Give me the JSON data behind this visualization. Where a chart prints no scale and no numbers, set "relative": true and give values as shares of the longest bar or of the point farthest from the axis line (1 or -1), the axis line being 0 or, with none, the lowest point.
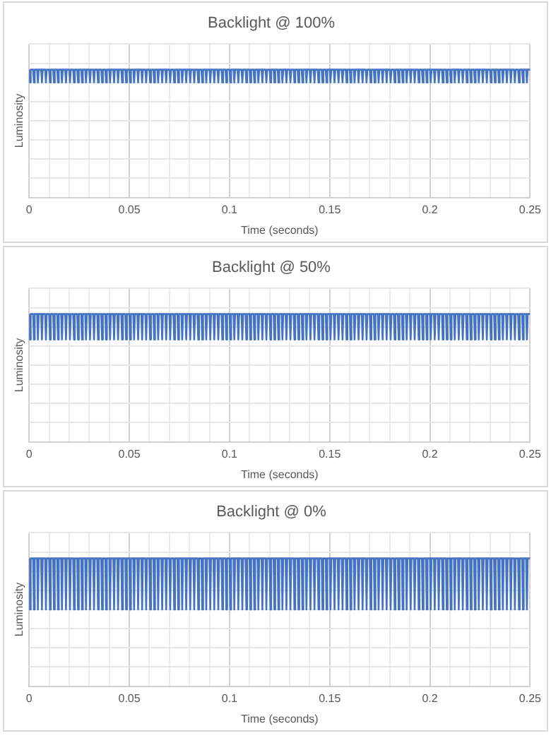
{
  "chart_data": [
    {
      "type": "line",
      "title": "Backlight @ 100%",
      "xlabel": "Time (seconds)",
      "ylabel": "Luminosity",
      "relative": true,
      "color": "#4472c4",
      "grid": true,
      "tick_labels": "x",
      "xlim": [
        0,
        0.25
      ],
      "xticks": [
        0,
        {
          "value": 0.01,
          "label": null
        },
        {
          "value": 0.02,
          "label": null
        },
        {
          "value": 0.03,
          "label": null
        },
        {
          "value": 0.04,
          "label": null
        },
        0.05,
        {
          "value": 0.06,
          "label": null
        },
        {
          "value": 0.07,
          "label": null
        },
        {
          "value": 0.08,
          "label": null
        },
        {
          "value": 0.09,
          "label": null
        },
        0.1,
        {
          "value": 0.11,
          "label": null
        },
        {
          "value": 0.12,
          "label": null
        },
        {
          "value": 0.13,
          "label": null
        },
        {
          "value": 0.14,
          "label": null
        },
        0.15,
        {
          "value": 0.16,
          "label": null
        },
        {
          "value": 0.17,
          "label": null
        },
        {
          "value": 0.18,
          "label": null
        },
        {
          "value": 0.19,
          "label": null
        },
        0.2,
        {
          "value": 0.21,
          "label": null
        },
        {
          "value": 0.22,
          "label": null
        },
        {
          "value": 0.23,
          "label": null
        },
        {
          "value": 0.24,
          "label": null
        },
        0.25
      ],
      "x": [
        0,
        0.0004,
        0.0008,
        0.002,
        0.0024,
        0.0028,
        0.004,
        0.0044,
        0.0048,
        0.006,
        0.0064,
        0.0068,
        0.008,
        0.0084,
        0.0088,
        0.01,
        0.0104,
        0.0108,
        0.012,
        0.0124,
        0.0128,
        0.014,
        0.0144,
        0.0148,
        0.016,
        0.0164,
        0.0168,
        0.018,
        0.0184,
        0.0188,
        0.02,
        0.0204,
        0.0208,
        0.022,
        0.0224,
        0.0228,
        0.024,
        0.0244,
        0.0248,
        0.026,
        0.0264,
        0.0268,
        0.028,
        0.0284,
        0.0288,
        0.03,
        0.0304,
        0.0308,
        0.032,
        0.0324,
        0.0328,
        0.034,
        0.0344,
        0.0348,
        0.036,
        0.0364,
        0.0368,
        0.038,
        0.0384,
        0.0388,
        0.04,
        0.0404,
        0.0408,
        0.042,
        0.0424,
        0.0428,
        0.044,
        0.0444,
        0.0448,
        0.046,
        0.0464,
        0.0468,
        0.048,
        0.0484,
        0.0488,
        0.05,
        0.0504,
        0.0508,
        0.052,
        0.0524,
        0.0528,
        0.054,
        0.0544,
        0.0548,
        0.056,
        0.0564,
        0.0568,
        0.058,
        0.0584,
        0.0588,
        0.06,
        0.0604,
        0.0608,
        0.062,
        0.0624,
        0.0628,
        0.064,
        0.0644,
        0.0648,
        0.066,
        0.0664,
        0.0668,
        0.068,
        0.0684,
        0.0688,
        0.07,
        0.0704,
        0.0708,
        0.072,
        0.0724,
        0.0728,
        0.074,
        0.0744,
        0.0748,
        0.076,
        0.0764,
        0.0768,
        0.078,
        0.0784,
        0.0788,
        0.08,
        0.0804,
        0.0808,
        0.082,
        0.0824,
        0.0828,
        0.084,
        0.0844,
        0.0848,
        0.086,
        0.0864,
        0.0868,
        0.088,
        0.0884,
        0.0888,
        0.09,
        0.0904,
        0.0908,
        0.092,
        0.0924,
        0.0928,
        0.094,
        0.0944,
        0.0948,
        0.096,
        0.0964,
        0.0968,
        0.098,
        0.0984,
        0.0988,
        0.1,
        0.1004,
        0.1008,
        0.102,
        0.1024,
        0.1028,
        0.104,
        0.1044,
        0.1048,
        0.106,
        0.1064,
        0.1068,
        0.108,
        0.1084,
        0.1088,
        0.11,
        0.1104,
        0.1108,
        0.112,
        0.1124,
        0.1128,
        0.114,
        0.1144,
        0.1148,
        0.116,
        0.1164,
        0.1168,
        0.118,
        0.1184,
        0.1188,
        0.12,
        0.1204,
        0.1208,
        0.122,
        0.1224,
        0.1228,
        0.124,
        0.1244,
        0.1248,
        0.126,
        0.1264,
        0.1268,
        0.128,
        0.1284,
        0.1288,
        0.13,
        0.1304,
        0.1308,
        0.132,
        0.1324,
        0.1328,
        0.134,
        0.1344,
        0.1348,
        0.136,
        0.1364,
        0.1368,
        0.138,
        0.1384,
        0.1388,
        0.14,
        0.1404,
        0.1408,
        0.142,
        0.1424,
        0.1428,
        0.144,
        0.1444,
        0.1448,
        0.146,
        0.1464,
        0.1468,
        0.148,
        0.1484,
        0.1488,
        0.15,
        0.1504,
        0.1508,
        0.152,
        0.1524,
        0.1528,
        0.154,
        0.1544,
        0.1548,
        0.156,
        0.1564,
        0.1568,
        0.158,
        0.1584,
        0.1588,
        0.16,
        0.1604,
        0.1608,
        0.162,
        0.1624,
        0.1628,
        0.164,
        0.1644,
        0.1648,
        0.166,
        0.1664,
        0.1668,
        0.168,
        0.1684,
        0.1688,
        0.17,
        0.1704,
        0.1708,
        0.172,
        0.1724,
        0.1728,
        0.174,
        0.1744,
        0.1748,
        0.176,
        0.1764,
        0.1768,
        0.178,
        0.1784,
        0.1788,
        0.18,
        0.1804,
        0.1808,
        0.182,
        0.1824,
        0.1828,
        0.184,
        0.1844,
        0.1848,
        0.186,
        0.1864,
        0.1868,
        0.188,
        0.1884,
        0.1888,
        0.19,
        0.1904,
        0.1908,
        0.192,
        0.1924,
        0.1928,
        0.194,
        0.1944,
        0.1948,
        0.196,
        0.1964,
        0.1968,
        0.198,
        0.1984,
        0.1988,
        0.2,
        0.2004,
        0.2008,
        0.202,
        0.2024,
        0.2028,
        0.204,
        0.2044,
        0.2048,
        0.206,
        0.2064,
        0.2068,
        0.208,
        0.2084,
        0.2088,
        0.21,
        0.2104,
        0.2108,
        0.212,
        0.2124,
        0.2128,
        0.214,
        0.2144,
        0.2148,
        0.216,
        0.2164,
        0.2168,
        0.218,
        0.2184,
        0.2188,
        0.22,
        0.2204,
        0.2208,
        0.222,
        0.2224,
        0.2228,
        0.224,
        0.2244,
        0.2248,
        0.226,
        0.2264,
        0.2268,
        0.228,
        0.2284,
        0.2288,
        0.23,
        0.2304,
        0.2308,
        0.232,
        0.2324,
        0.2328,
        0.234,
        0.2344,
        0.2348,
        0.236,
        0.2364,
        0.2368,
        0.238,
        0.2384,
        0.2388,
        0.24,
        0.2404,
        0.2408,
        0.242,
        0.2424,
        0.2428,
        0.244,
        0.2444,
        0.2448,
        0.246,
        0.2464,
        0.2468,
        0.248,
        0.2484,
        0.2488,
        0.25
      ],
      "values": [
        1,
        0.9,
        1,
        1,
        0.9,
        1,
        1,
        0.9,
        1,
        1,
        0.9,
        1,
        1,
        0.9,
        1,
        1,
        0.9,
        1,
        1,
        0.9,
        1,
        1,
        0.9,
        1,
        1,
        0.9,
        1,
        1,
        0.9,
        1,
        1,
        0.9,
        1,
        1,
        0.9,
        1,
        1,
        0.9,
        1,
        1,
        0.9,
        1,
        1,
        0.9,
        1,
        1,
        0.9,
        1,
        1,
        0.9,
        1,
        1,
        0.9,
        1,
        1,
        0.9,
        1,
        1,
        0.9,
        1,
        1,
        0.9,
        1,
        1,
        0.9,
        1,
        1,
        0.9,
        1,
        1,
        0.9,
        1,
        1,
        0.9,
        1,
        1,
        0.9,
        1,
        1,
        0.9,
        1,
        1,
        0.9,
        1,
        1,
        0.9,
        1,
        1,
        0.9,
        1,
        1,
        0.9,
        1,
        1,
        0.9,
        1,
        1,
        0.9,
        1,
        1,
        0.9,
        1,
        1,
        0.9,
        1,
        1,
        0.9,
        1,
        1,
        0.9,
        1,
        1,
        0.9,
        1,
        1,
        0.9,
        1,
        1,
        0.9,
        1,
        1,
        0.9,
        1,
        1,
        0.9,
        1,
        1,
        0.9,
        1,
        1,
        0.9,
        1,
        1,
        0.9,
        1,
        1,
        0.9,
        1,
        1,
        0.9,
        1,
        1,
        0.9,
        1,
        1,
        0.9,
        1,
        1,
        0.9,
        1,
        1,
        0.9,
        1,
        1,
        0.9,
        1,
        1,
        0.9,
        1,
        1,
        0.9,
        1,
        1,
        0.9,
        1,
        1,
        0.9,
        1,
        1,
        0.9,
        1,
        1,
        0.9,
        1,
        1,
        0.9,
        1,
        1,
        0.9,
        1,
        1,
        0.9,
        1,
        1,
        0.9,
        1,
        1,
        0.9,
        1,
        1,
        0.9,
        1,
        1,
        0.9,
        1,
        1,
        0.9,
        1,
        1,
        0.9,
        1,
        1,
        0.9,
        1,
        1,
        0.9,
        1,
        1,
        0.9,
        1,
        1,
        0.9,
        1,
        1,
        0.9,
        1,
        1,
        0.9,
        1,
        1,
        0.9,
        1,
        1,
        0.9,
        1,
        1,
        0.9,
        1,
        1,
        0.9,
        1,
        1,
        0.9,
        1,
        1,
        0.9,
        1,
        1,
        0.9,
        1,
        1,
        0.9,
        1,
        1,
        0.9,
        1,
        1,
        0.9,
        1,
        1,
        0.9,
        1,
        1,
        0.9,
        1,
        1,
        0.9,
        1,
        1,
        0.9,
        1,
        1,
        0.9,
        1,
        1,
        0.9,
        1,
        1,
        0.9,
        1,
        1,
        0.9,
        1,
        1,
        0.9,
        1,
        1,
        0.9,
        1,
        1,
        0.9,
        1,
        1,
        0.9,
        1,
        1,
        0.9,
        1,
        1,
        0.9,
        1,
        1,
        0.9,
        1,
        1,
        0.9,
        1,
        1,
        0.9,
        1,
        1,
        0.9,
        1,
        1,
        0.9,
        1,
        1,
        0.9,
        1,
        1,
        0.9,
        1,
        1,
        0.9,
        1,
        1,
        0.9,
        1,
        1,
        0.9,
        1,
        1,
        0.9,
        1,
        1,
        0.9,
        1,
        1,
        0.9,
        1,
        1,
        0.9,
        1,
        1,
        0.9,
        1,
        1,
        0.9,
        1,
        1,
        0.9,
        1,
        1,
        0.9,
        1,
        1,
        0.9,
        1,
        1,
        0.9,
        1,
        1,
        0.9,
        1,
        1,
        0.9,
        1,
        1,
        0.9,
        1,
        1,
        0.9,
        1,
        1,
        0.9,
        1,
        1,
        0.9,
        1,
        1,
        0.9,
        1,
        1,
        0.9,
        1,
        1
      ]
    },
    {
      "type": "line",
      "title": "Backlight @ 50%",
      "xlabel": "Time (seconds)",
      "ylabel": "Luminosity",
      "relative": true,
      "color": "#4472c4",
      "grid": true,
      "tick_labels": "x",
      "xlim": [
        0,
        0.25
      ],
      "xticks": [
        0,
        {
          "value": 0.01,
          "label": null
        },
        {
          "value": 0.02,
          "label": null
        },
        {
          "value": 0.03,
          "label": null
        },
        {
          "value": 0.04,
          "label": null
        },
        0.05,
        {
          "value": 0.06,
          "label": null
        },
        {
          "value": 0.07,
          "label": null
        },
        {
          "value": 0.08,
          "label": null
        },
        {
          "value": 0.09,
          "label": null
        },
        0.1,
        {
          "value": 0.11,
          "label": null
        },
        {
          "value": 0.12,
          "label": null
        },
        {
          "value": 0.13,
          "label": null
        },
        {
          "value": 0.14,
          "label": null
        },
        0.15,
        {
          "value": 0.16,
          "label": null
        },
        {
          "value": 0.17,
          "label": null
        },
        {
          "value": 0.18,
          "label": null
        },
        {
          "value": 0.19,
          "label": null
        },
        0.2,
        {
          "value": 0.21,
          "label": null
        },
        {
          "value": 0.22,
          "label": null
        },
        {
          "value": 0.23,
          "label": null
        },
        {
          "value": 0.24,
          "label": null
        },
        0.25
      ],
      "x": [
        0,
        0.0004,
        0.0008,
        0.002,
        0.0024,
        0.0028,
        0.004,
        0.0044,
        0.0048,
        0.006,
        0.0064,
        0.0068,
        0.008,
        0.0084,
        0.0088,
        0.01,
        0.0104,
        0.0108,
        0.012,
        0.0124,
        0.0128,
        0.014,
        0.0144,
        0.0148,
        0.016,
        0.0164,
        0.0168,
        0.018,
        0.0184,
        0.0188,
        0.02,
        0.0204,
        0.0208,
        0.022,
        0.0224,
        0.0228,
        0.024,
        0.0244,
        0.0248,
        0.026,
        0.0264,
        0.0268,
        0.028,
        0.0284,
        0.0288,
        0.03,
        0.0304,
        0.0308,
        0.032,
        0.0324,
        0.0328,
        0.034,
        0.0344,
        0.0348,
        0.036,
        0.0364,
        0.0368,
        0.038,
        0.0384,
        0.0388,
        0.04,
        0.0404,
        0.0408,
        0.042,
        0.0424,
        0.0428,
        0.044,
        0.0444,
        0.0448,
        0.046,
        0.0464,
        0.0468,
        0.048,
        0.0484,
        0.0488,
        0.05,
        0.0504,
        0.0508,
        0.052,
        0.0524,
        0.0528,
        0.054,
        0.0544,
        0.0548,
        0.056,
        0.0564,
        0.0568,
        0.058,
        0.0584,
        0.0588,
        0.06,
        0.0604,
        0.0608,
        0.062,
        0.0624,
        0.0628,
        0.064,
        0.0644,
        0.0648,
        0.066,
        0.0664,
        0.0668,
        0.068,
        0.0684,
        0.0688,
        0.07,
        0.0704,
        0.0708,
        0.072,
        0.0724,
        0.0728,
        0.074,
        0.0744,
        0.0748,
        0.076,
        0.0764,
        0.0768,
        0.078,
        0.0784,
        0.0788,
        0.08,
        0.0804,
        0.0808,
        0.082,
        0.0824,
        0.0828,
        0.084,
        0.0844,
        0.0848,
        0.086,
        0.0864,
        0.0868,
        0.088,
        0.0884,
        0.0888,
        0.09,
        0.0904,
        0.0908,
        0.092,
        0.0924,
        0.0928,
        0.094,
        0.0944,
        0.0948,
        0.096,
        0.0964,
        0.0968,
        0.098,
        0.0984,
        0.0988,
        0.1,
        0.1004,
        0.1008,
        0.102,
        0.1024,
        0.1028,
        0.104,
        0.1044,
        0.1048,
        0.106,
        0.1064,
        0.1068,
        0.108,
        0.1084,
        0.1088,
        0.11,
        0.1104,
        0.1108,
        0.112,
        0.1124,
        0.1128,
        0.114,
        0.1144,
        0.1148,
        0.116,
        0.1164,
        0.1168,
        0.118,
        0.1184,
        0.1188,
        0.12,
        0.1204,
        0.1208,
        0.122,
        0.1224,
        0.1228,
        0.124,
        0.1244,
        0.1248,
        0.126,
        0.1264,
        0.1268,
        0.128,
        0.1284,
        0.1288,
        0.13,
        0.1304,
        0.1308,
        0.132,
        0.1324,
        0.1328,
        0.134,
        0.1344,
        0.1348,
        0.136,
        0.1364,
        0.1368,
        0.138,
        0.1384,
        0.1388,
        0.14,
        0.1404,
        0.1408,
        0.142,
        0.1424,
        0.1428,
        0.144,
        0.1444,
        0.1448,
        0.146,
        0.1464,
        0.1468,
        0.148,
        0.1484,
        0.1488,
        0.15,
        0.1504,
        0.1508,
        0.152,
        0.1524,
        0.1528,
        0.154,
        0.1544,
        0.1548,
        0.156,
        0.1564,
        0.1568,
        0.158,
        0.1584,
        0.1588,
        0.16,
        0.1604,
        0.1608,
        0.162,
        0.1624,
        0.1628,
        0.164,
        0.1644,
        0.1648,
        0.166,
        0.1664,
        0.1668,
        0.168,
        0.1684,
        0.1688,
        0.17,
        0.1704,
        0.1708,
        0.172,
        0.1724,
        0.1728,
        0.174,
        0.1744,
        0.1748,
        0.176,
        0.1764,
        0.1768,
        0.178,
        0.1784,
        0.1788,
        0.18,
        0.1804,
        0.1808,
        0.182,
        0.1824,
        0.1828,
        0.184,
        0.1844,
        0.1848,
        0.186,
        0.1864,
        0.1868,
        0.188,
        0.1884,
        0.1888,
        0.19,
        0.1904,
        0.1908,
        0.192,
        0.1924,
        0.1928,
        0.194,
        0.1944,
        0.1948,
        0.196,
        0.1964,
        0.1968,
        0.198,
        0.1984,
        0.1988,
        0.2,
        0.2004,
        0.2008,
        0.202,
        0.2024,
        0.2028,
        0.204,
        0.2044,
        0.2048,
        0.206,
        0.2064,
        0.2068,
        0.208,
        0.2084,
        0.2088,
        0.21,
        0.2104,
        0.2108,
        0.212,
        0.2124,
        0.2128,
        0.214,
        0.2144,
        0.2148,
        0.216,
        0.2164,
        0.2168,
        0.218,
        0.2184,
        0.2188,
        0.22,
        0.2204,
        0.2208,
        0.222,
        0.2224,
        0.2228,
        0.224,
        0.2244,
        0.2248,
        0.226,
        0.2264,
        0.2268,
        0.228,
        0.2284,
        0.2288,
        0.23,
        0.2304,
        0.2308,
        0.232,
        0.2324,
        0.2328,
        0.234,
        0.2344,
        0.2348,
        0.236,
        0.2364,
        0.2368,
        0.238,
        0.2384,
        0.2388,
        0.24,
        0.2404,
        0.2408,
        0.242,
        0.2424,
        0.2428,
        0.244,
        0.2444,
        0.2448,
        0.246,
        0.2464,
        0.2468,
        0.248,
        0.2484,
        0.2488,
        0.25
      ],
      "values": [
        1,
        0.8,
        1,
        1,
        0.8,
        1,
        1,
        0.8,
        1,
        1,
        0.8,
        1,
        1,
        0.8,
        1,
        1,
        0.8,
        1,
        1,
        0.8,
        1,
        1,
        0.8,
        1,
        1,
        0.8,
        1,
        1,
        0.8,
        1,
        1,
        0.8,
        1,
        1,
        0.8,
        1,
        1,
        0.8,
        1,
        1,
        0.8,
        1,
        1,
        0.8,
        1,
        1,
        0.8,
        1,
        1,
        0.8,
        1,
        1,
        0.8,
        1,
        1,
        0.8,
        1,
        1,
        0.8,
        1,
        1,
        0.8,
        1,
        1,
        0.8,
        1,
        1,
        0.8,
        1,
        1,
        0.8,
        1,
        1,
        0.8,
        1,
        1,
        0.8,
        1,
        1,
        0.8,
        1,
        1,
        0.8,
        1,
        1,
        0.8,
        1,
        1,
        0.8,
        1,
        1,
        0.8,
        1,
        1,
        0.8,
        1,
        1,
        0.8,
        1,
        1,
        0.8,
        1,
        1,
        0.8,
        1,
        1,
        0.8,
        1,
        1,
        0.8,
        1,
        1,
        0.8,
        1,
        1,
        0.8,
        1,
        1,
        0.8,
        1,
        1,
        0.8,
        1,
        1,
        0.8,
        1,
        1,
        0.8,
        1,
        1,
        0.8,
        1,
        1,
        0.8,
        1,
        1,
        0.8,
        1,
        1,
        0.8,
        1,
        1,
        0.8,
        1,
        1,
        0.8,
        1,
        1,
        0.8,
        1,
        1,
        0.8,
        1,
        1,
        0.8,
        1,
        1,
        0.8,
        1,
        1,
        0.8,
        1,
        1,
        0.8,
        1,
        1,
        0.8,
        1,
        1,
        0.8,
        1,
        1,
        0.8,
        1,
        1,
        0.8,
        1,
        1,
        0.8,
        1,
        1,
        0.8,
        1,
        1,
        0.8,
        1,
        1,
        0.8,
        1,
        1,
        0.8,
        1,
        1,
        0.8,
        1,
        1,
        0.8,
        1,
        1,
        0.8,
        1,
        1,
        0.8,
        1,
        1,
        0.8,
        1,
        1,
        0.8,
        1,
        1,
        0.8,
        1,
        1,
        0.8,
        1,
        1,
        0.8,
        1,
        1,
        0.8,
        1,
        1,
        0.8,
        1,
        1,
        0.8,
        1,
        1,
        0.8,
        1,
        1,
        0.8,
        1,
        1,
        0.8,
        1,
        1,
        0.8,
        1,
        1,
        0.8,
        1,
        1,
        0.8,
        1,
        1,
        0.8,
        1,
        1,
        0.8,
        1,
        1,
        0.8,
        1,
        1,
        0.8,
        1,
        1,
        0.8,
        1,
        1,
        0.8,
        1,
        1,
        0.8,
        1,
        1,
        0.8,
        1,
        1,
        0.8,
        1,
        1,
        0.8,
        1,
        1,
        0.8,
        1,
        1,
        0.8,
        1,
        1,
        0.8,
        1,
        1,
        0.8,
        1,
        1,
        0.8,
        1,
        1,
        0.8,
        1,
        1,
        0.8,
        1,
        1,
        0.8,
        1,
        1,
        0.8,
        1,
        1,
        0.8,
        1,
        1,
        0.8,
        1,
        1,
        0.8,
        1,
        1,
        0.8,
        1,
        1,
        0.8,
        1,
        1,
        0.8,
        1,
        1,
        0.8,
        1,
        1,
        0.8,
        1,
        1,
        0.8,
        1,
        1,
        0.8,
        1,
        1,
        0.8,
        1,
        1,
        0.8,
        1,
        1,
        0.8,
        1,
        1,
        0.8,
        1,
        1,
        0.8,
        1,
        1,
        0.8,
        1,
        1,
        0.8,
        1,
        1,
        0.8,
        1,
        1,
        0.8,
        1,
        1,
        0.8,
        1,
        1,
        0.8,
        1,
        1,
        0.8,
        1,
        1,
        0.8,
        1,
        1,
        0.8,
        1,
        1
      ]
    },
    {
      "type": "line",
      "title": "Backlight @ 0%",
      "xlabel": "Time (seconds)",
      "ylabel": "Luminosity",
      "relative": true,
      "color": "#4472c4",
      "grid": true,
      "tick_labels": "x",
      "xlim": [
        0,
        0.25
      ],
      "xticks": [
        0,
        {
          "value": 0.01,
          "label": null
        },
        {
          "value": 0.02,
          "label": null
        },
        {
          "value": 0.03,
          "label": null
        },
        {
          "value": 0.04,
          "label": null
        },
        0.05,
        {
          "value": 0.06,
          "label": null
        },
        {
          "value": 0.07,
          "label": null
        },
        {
          "value": 0.08,
          "label": null
        },
        {
          "value": 0.09,
          "label": null
        },
        0.1,
        {
          "value": 0.11,
          "label": null
        },
        {
          "value": 0.12,
          "label": null
        },
        {
          "value": 0.13,
          "label": null
        },
        {
          "value": 0.14,
          "label": null
        },
        0.15,
        {
          "value": 0.16,
          "label": null
        },
        {
          "value": 0.17,
          "label": null
        },
        {
          "value": 0.18,
          "label": null
        },
        {
          "value": 0.19,
          "label": null
        },
        0.2,
        {
          "value": 0.21,
          "label": null
        },
        {
          "value": 0.22,
          "label": null
        },
        {
          "value": 0.23,
          "label": null
        },
        {
          "value": 0.24,
          "label": null
        },
        0.25
      ],
      "x": [
        0,
        0.0004,
        0.0008,
        0.002,
        0.0024,
        0.0028,
        0.004,
        0.0044,
        0.0048,
        0.006,
        0.0064,
        0.0068,
        0.008,
        0.0084,
        0.0088,
        0.01,
        0.0104,
        0.0108,
        0.012,
        0.0124,
        0.0128,
        0.014,
        0.0144,
        0.0148,
        0.016,
        0.0164,
        0.0168,
        0.018,
        0.0184,
        0.0188,
        0.02,
        0.0204,
        0.0208,
        0.022,
        0.0224,
        0.0228,
        0.024,
        0.0244,
        0.0248,
        0.026,
        0.0264,
        0.0268,
        0.028,
        0.0284,
        0.0288,
        0.03,
        0.0304,
        0.0308,
        0.032,
        0.0324,
        0.0328,
        0.034,
        0.0344,
        0.0348,
        0.036,
        0.0364,
        0.0368,
        0.038,
        0.0384,
        0.0388,
        0.04,
        0.0404,
        0.0408,
        0.042,
        0.0424,
        0.0428,
        0.044,
        0.0444,
        0.0448,
        0.046,
        0.0464,
        0.0468,
        0.048,
        0.0484,
        0.0488,
        0.05,
        0.0504,
        0.0508,
        0.052,
        0.0524,
        0.0528,
        0.054,
        0.0544,
        0.0548,
        0.056,
        0.0564,
        0.0568,
        0.058,
        0.0584,
        0.0588,
        0.06,
        0.0604,
        0.0608,
        0.062,
        0.0624,
        0.0628,
        0.064,
        0.0644,
        0.0648,
        0.066,
        0.0664,
        0.0668,
        0.068,
        0.0684,
        0.0688,
        0.07,
        0.0704,
        0.0708,
        0.072,
        0.0724,
        0.0728,
        0.074,
        0.0744,
        0.0748,
        0.076,
        0.0764,
        0.0768,
        0.078,
        0.0784,
        0.0788,
        0.08,
        0.0804,
        0.0808,
        0.082,
        0.0824,
        0.0828,
        0.084,
        0.0844,
        0.0848,
        0.086,
        0.0864,
        0.0868,
        0.088,
        0.0884,
        0.0888,
        0.09,
        0.0904,
        0.0908,
        0.092,
        0.0924,
        0.0928,
        0.094,
        0.0944,
        0.0948,
        0.096,
        0.0964,
        0.0968,
        0.098,
        0.0984,
        0.0988,
        0.1,
        0.1004,
        0.1008,
        0.102,
        0.1024,
        0.1028,
        0.104,
        0.1044,
        0.1048,
        0.106,
        0.1064,
        0.1068,
        0.108,
        0.1084,
        0.1088,
        0.11,
        0.1104,
        0.1108,
        0.112,
        0.1124,
        0.1128,
        0.114,
        0.1144,
        0.1148,
        0.116,
        0.1164,
        0.1168,
        0.118,
        0.1184,
        0.1188,
        0.12,
        0.1204,
        0.1208,
        0.122,
        0.1224,
        0.1228,
        0.124,
        0.1244,
        0.1248,
        0.126,
        0.1264,
        0.1268,
        0.128,
        0.1284,
        0.1288,
        0.13,
        0.1304,
        0.1308,
        0.132,
        0.1324,
        0.1328,
        0.134,
        0.1344,
        0.1348,
        0.136,
        0.1364,
        0.1368,
        0.138,
        0.1384,
        0.1388,
        0.14,
        0.1404,
        0.1408,
        0.142,
        0.1424,
        0.1428,
        0.144,
        0.1444,
        0.1448,
        0.146,
        0.1464,
        0.1468,
        0.148,
        0.1484,
        0.1488,
        0.15,
        0.1504,
        0.1508,
        0.152,
        0.1524,
        0.1528,
        0.154,
        0.1544,
        0.1548,
        0.156,
        0.1564,
        0.1568,
        0.158,
        0.1584,
        0.1588,
        0.16,
        0.1604,
        0.1608,
        0.162,
        0.1624,
        0.1628,
        0.164,
        0.1644,
        0.1648,
        0.166,
        0.1664,
        0.1668,
        0.168,
        0.1684,
        0.1688,
        0.17,
        0.1704,
        0.1708,
        0.172,
        0.1724,
        0.1728,
        0.174,
        0.1744,
        0.1748,
        0.176,
        0.1764,
        0.1768,
        0.178,
        0.1784,
        0.1788,
        0.18,
        0.1804,
        0.1808,
        0.182,
        0.1824,
        0.1828,
        0.184,
        0.1844,
        0.1848,
        0.186,
        0.1864,
        0.1868,
        0.188,
        0.1884,
        0.1888,
        0.19,
        0.1904,
        0.1908,
        0.192,
        0.1924,
        0.1928,
        0.194,
        0.1944,
        0.1948,
        0.196,
        0.1964,
        0.1968,
        0.198,
        0.1984,
        0.1988,
        0.2,
        0.2004,
        0.2008,
        0.202,
        0.2024,
        0.2028,
        0.204,
        0.2044,
        0.2048,
        0.206,
        0.2064,
        0.2068,
        0.208,
        0.2084,
        0.2088,
        0.21,
        0.2104,
        0.2108,
        0.212,
        0.2124,
        0.2128,
        0.214,
        0.2144,
        0.2148,
        0.216,
        0.2164,
        0.2168,
        0.218,
        0.2184,
        0.2188,
        0.22,
        0.2204,
        0.2208,
        0.222,
        0.2224,
        0.2228,
        0.224,
        0.2244,
        0.2248,
        0.226,
        0.2264,
        0.2268,
        0.228,
        0.2284,
        0.2288,
        0.23,
        0.2304,
        0.2308,
        0.232,
        0.2324,
        0.2328,
        0.234,
        0.2344,
        0.2348,
        0.236,
        0.2364,
        0.2368,
        0.238,
        0.2384,
        0.2388,
        0.24,
        0.2404,
        0.2408,
        0.242,
        0.2424,
        0.2428,
        0.244,
        0.2444,
        0.2448,
        0.246,
        0.2464,
        0.2468,
        0.248,
        0.2484,
        0.2488,
        0.25
      ],
      "values": [
        1,
        0.6,
        1,
        1,
        0.6,
        1,
        1,
        0.6,
        1,
        1,
        0.6,
        1,
        1,
        0.6,
        1,
        1,
        0.6,
        1,
        1,
        0.6,
        1,
        1,
        0.6,
        1,
        1,
        0.6,
        1,
        1,
        0.6,
        1,
        1,
        0.6,
        1,
        1,
        0.6,
        1,
        1,
        0.6,
        1,
        1,
        0.6,
        1,
        1,
        0.6,
        1,
        1,
        0.6,
        1,
        1,
        0.6,
        1,
        1,
        0.6,
        1,
        1,
        0.6,
        1,
        1,
        0.6,
        1,
        1,
        0.6,
        1,
        1,
        0.6,
        1,
        1,
        0.6,
        1,
        1,
        0.6,
        1,
        1,
        0.6,
        1,
        1,
        0.6,
        1,
        1,
        0.6,
        1,
        1,
        0.6,
        1,
        1,
        0.6,
        1,
        1,
        0.6,
        1,
        1,
        0.6,
        1,
        1,
        0.6,
        1,
        1,
        0.6,
        1,
        1,
        0.6,
        1,
        1,
        0.6,
        1,
        1,
        0.6,
        1,
        1,
        0.6,
        1,
        1,
        0.6,
        1,
        1,
        0.6,
        1,
        1,
        0.6,
        1,
        1,
        0.6,
        1,
        1,
        0.6,
        1,
        1,
        0.6,
        1,
        1,
        0.6,
        1,
        1,
        0.6,
        1,
        1,
        0.6,
        1,
        1,
        0.6,
        1,
        1,
        0.6,
        1,
        1,
        0.6,
        1,
        1,
        0.6,
        1,
        1,
        0.6,
        1,
        1,
        0.6,
        1,
        1,
        0.6,
        1,
        1,
        0.6,
        1,
        1,
        0.6,
        1,
        1,
        0.6,
        1,
        1,
        0.6,
        1,
        1,
        0.6,
        1,
        1,
        0.6,
        1,
        1,
        0.6,
        1,
        1,
        0.6,
        1,
        1,
        0.6,
        1,
        1,
        0.6,
        1,
        1,
        0.6,
        1,
        1,
        0.6,
        1,
        1,
        0.6,
        1,
        1,
        0.6,
        1,
        1,
        0.6,
        1,
        1,
        0.6,
        1,
        1,
        0.6,
        1,
        1,
        0.6,
        1,
        1,
        0.6,
        1,
        1,
        0.6,
        1,
        1,
        0.6,
        1,
        1,
        0.6,
        1,
        1,
        0.6,
        1,
        1,
        0.6,
        1,
        1,
        0.6,
        1,
        1,
        0.6,
        1,
        1,
        0.6,
        1,
        1,
        0.6,
        1,
        1,
        0.6,
        1,
        1,
        0.6,
        1,
        1,
        0.6,
        1,
        1,
        0.6,
        1,
        1,
        0.6,
        1,
        1,
        0.6,
        1,
        1,
        0.6,
        1,
        1,
        0.6,
        1,
        1,
        0.6,
        1,
        1,
        0.6,
        1,
        1,
        0.6,
        1,
        1,
        0.6,
        1,
        1,
        0.6,
        1,
        1,
        0.6,
        1,
        1,
        0.6,
        1,
        1,
        0.6,
        1,
        1,
        0.6,
        1,
        1,
        0.6,
        1,
        1,
        0.6,
        1,
        1,
        0.6,
        1,
        1,
        0.6,
        1,
        1,
        0.6,
        1,
        1,
        0.6,
        1,
        1,
        0.6,
        1,
        1,
        0.6,
        1,
        1,
        0.6,
        1,
        1,
        0.6,
        1,
        1,
        0.6,
        1,
        1,
        0.6,
        1,
        1,
        0.6,
        1,
        1,
        0.6,
        1,
        1,
        0.6,
        1,
        1,
        0.6,
        1,
        1,
        0.6,
        1,
        1,
        0.6,
        1,
        1,
        0.6,
        1,
        1,
        0.6,
        1,
        1,
        0.6,
        1,
        1,
        0.6,
        1,
        1,
        0.6,
        1,
        1,
        0.6,
        1,
        1,
        0.6,
        1,
        1,
        0.6,
        1,
        1,
        0.6,
        1,
        1
      ]
    }
  ]
}
